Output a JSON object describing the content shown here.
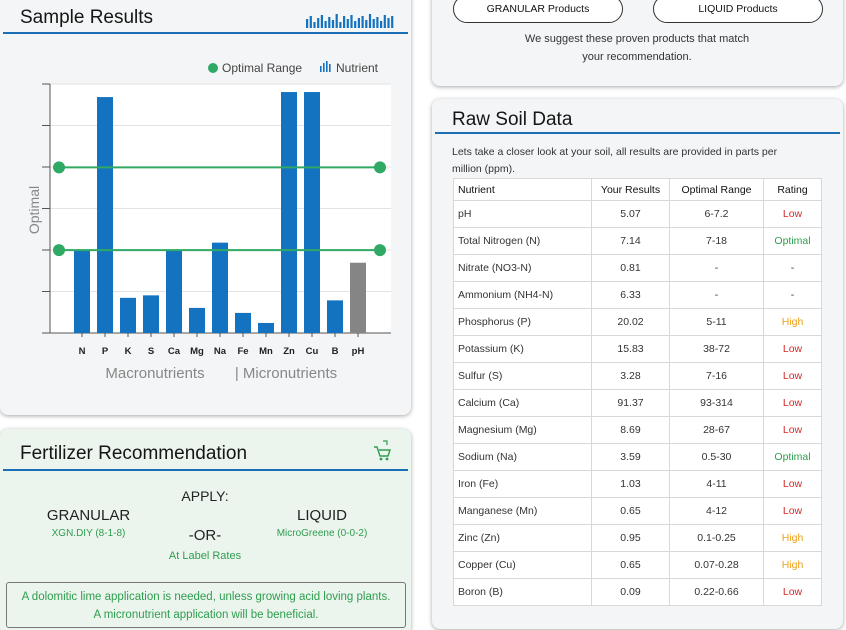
{
  "sample": {
    "title": "Sample Results",
    "legend_optimal": "Optimal Range",
    "legend_nutrient": "Nutrient",
    "group_macro": "Macronutrients",
    "group_micro": "| Micronutrients"
  },
  "chart_data": {
    "type": "bar",
    "categories": [
      "N",
      "P",
      "K",
      "S",
      "Ca",
      "Mg",
      "Na",
      "Fe",
      "Mn",
      "Zn",
      "Cu",
      "B",
      "pH"
    ],
    "values": [
      0.33,
      0.94,
      0.14,
      0.15,
      0.33,
      0.1,
      0.36,
      0.08,
      0.04,
      0.96,
      0.96,
      0.13,
      0.28
    ],
    "optimal_range": [
      0.33,
      0.66
    ],
    "ylabel": "Optimal",
    "ylim": [
      0,
      1
    ],
    "colors": {
      "bar": "#1473c0",
      "ph_bar": "#858585",
      "optimal": "#2fa964"
    },
    "grid": true
  },
  "fertilizer": {
    "title": "Fertilizer Recommendation",
    "apply": "APPLY:",
    "granular_title": "GRANULAR",
    "granular_product": "XGN.DIY (8-1-8)",
    "or": "-OR-",
    "liquid_title": "LIQUID",
    "liquid_product": "MicroGreene (0-0-2)",
    "rate": "At Label Rates",
    "notice_line1": "A dolomitic lime application is needed, unless growing acid loving plants.",
    "notice_line2": "A micronutrient application will be beneficial."
  },
  "products": {
    "granular_button": "GRANULAR Products",
    "liquid_button": "LIQUID Products",
    "suggest_line1": "We suggest these proven products that match",
    "suggest_line2": "your recommendation."
  },
  "soil": {
    "title": "Raw Soil Data",
    "intro_line1": "Lets take a closer look at your soil, all results are provided in parts per",
    "intro_line2": "million (ppm).",
    "headers": [
      "Nutrient",
      "Your Results",
      "Optimal Range",
      "Rating"
    ],
    "rows": [
      {
        "nutrient": "pH",
        "result": "5.07",
        "range": "6-7.2",
        "rating": "Low"
      },
      {
        "nutrient": "Total Nitrogen (N)",
        "result": "7.14",
        "range": "7-18",
        "rating": "Optimal"
      },
      {
        "nutrient": "Nitrate (NO3-N)",
        "result": "0.81",
        "range": "-",
        "rating": "-"
      },
      {
        "nutrient": "Ammonium (NH4-N)",
        "result": "6.33",
        "range": "-",
        "rating": "-"
      },
      {
        "nutrient": "Phosphorus (P)",
        "result": "20.02",
        "range": "5-11",
        "rating": "High"
      },
      {
        "nutrient": "Potassium (K)",
        "result": "15.83",
        "range": "38-72",
        "rating": "Low"
      },
      {
        "nutrient": "Sulfur (S)",
        "result": "3.28",
        "range": "7-16",
        "rating": "Low"
      },
      {
        "nutrient": "Calcium (Ca)",
        "result": "91.37",
        "range": "93-314",
        "rating": "Low"
      },
      {
        "nutrient": "Magnesium (Mg)",
        "result": "8.69",
        "range": "28-67",
        "rating": "Low"
      },
      {
        "nutrient": "Sodium (Na)",
        "result": "3.59",
        "range": "0.5-30",
        "rating": "Optimal"
      },
      {
        "nutrient": "Iron (Fe)",
        "result": "1.03",
        "range": "4-11",
        "rating": "Low"
      },
      {
        "nutrient": "Manganese (Mn)",
        "result": "0.65",
        "range": "4-12",
        "rating": "Low"
      },
      {
        "nutrient": "Zinc (Zn)",
        "result": "0.95",
        "range": "0.1-0.25",
        "rating": "High"
      },
      {
        "nutrient": "Copper (Cu)",
        "result": "0.65",
        "range": "0.07-0.28",
        "rating": "High"
      },
      {
        "nutrient": "Boron (B)",
        "result": "0.09",
        "range": "0.22-0.66",
        "rating": "Low"
      }
    ]
  },
  "icons": {
    "chart": "bar-chart-icon",
    "cart": "cart-icon",
    "legend_dot": "optimal-dot-icon",
    "legend_bars": "nutrient-bars-icon"
  }
}
